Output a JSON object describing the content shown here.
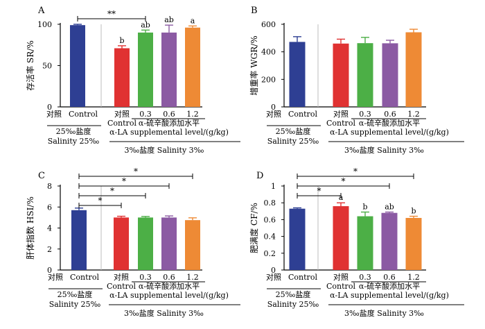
{
  "chart_data": [
    {
      "panel": "A",
      "type": "bar",
      "ylabel": "存活率 SR/%",
      "ylim": [
        0,
        100
      ],
      "yticks": [
        0,
        50,
        100
      ],
      "bars": [
        {
          "label": "Control",
          "value": 99,
          "err": 1,
          "color": "#2e3f93",
          "letter": ""
        },
        {
          "label": "对照",
          "value": 71,
          "err": 3,
          "color": "#e03232",
          "letter": "b"
        },
        {
          "label": "0.3",
          "value": 90,
          "err": 3,
          "color": "#4caf46",
          "letter": "ab"
        },
        {
          "label": "0.6",
          "value": 90,
          "err": 9,
          "color": "#8b5aa3",
          "letter": "ab"
        },
        {
          "label": "1.2",
          "value": 96,
          "err": 2,
          "color": "#ee8a35",
          "letter": "a"
        }
      ],
      "significance": [
        {
          "from": 0,
          "to": 2,
          "mark": "**"
        }
      ],
      "xlabels": {
        "control_cn": "对照",
        "control_en": "Control",
        "treat_control_cn": "对照",
        "treat_control_en": "Control",
        "doses": [
          "0.3",
          "0.6",
          "1.2"
        ],
        "la_cn": "α-硫辛酸添加水平",
        "la_en": "α-LA supplemental level/(g/kg)",
        "sal25_cn": "25‰盐度",
        "sal25_en": "Salinity 25‰",
        "sal3": "3‰盐度  Salinity 3‰"
      }
    },
    {
      "panel": "B",
      "type": "bar",
      "ylabel": "增重率  WGR/%",
      "ylim": [
        0,
        600
      ],
      "yticks": [
        0,
        200,
        400,
        600
      ],
      "bars": [
        {
          "label": "Control",
          "value": 472,
          "err": 38,
          "color": "#2e3f93",
          "letter": ""
        },
        {
          "label": "对照",
          "value": 460,
          "err": 32,
          "color": "#e03232",
          "letter": ""
        },
        {
          "label": "0.3",
          "value": 463,
          "err": 42,
          "color": "#4caf46",
          "letter": ""
        },
        {
          "label": "0.6",
          "value": 462,
          "err": 22,
          "color": "#8b5aa3",
          "letter": ""
        },
        {
          "label": "1.2",
          "value": 542,
          "err": 22,
          "color": "#ee8a35",
          "letter": ""
        }
      ],
      "significance": [],
      "xlabels": {
        "control_cn": "对照",
        "control_en": "Control",
        "treat_control_cn": "对照",
        "treat_control_en": "Control",
        "doses": [
          "0.3",
          "0.6",
          "1.2"
        ],
        "la_cn": "α-硫辛酸添加水平",
        "la_en": "α-LA supplemental level/(g/kg)",
        "sal25_cn": "25‰盐度",
        "sal25_en": "Salinity 25‰",
        "sal3": "3‰盐度  Salinity 3‰"
      }
    },
    {
      "panel": "C",
      "type": "bar",
      "ylabel": "肝体指数  HSI/%",
      "ylim": [
        0,
        8
      ],
      "yticks": [
        0,
        2,
        4,
        6,
        8
      ],
      "bars": [
        {
          "label": "Control",
          "value": 5.7,
          "err": 0.2,
          "color": "#2e3f93",
          "letter": ""
        },
        {
          "label": "对照",
          "value": 5.0,
          "err": 0.12,
          "color": "#e03232",
          "letter": ""
        },
        {
          "label": "0.3",
          "value": 5.0,
          "err": 0.1,
          "color": "#4caf46",
          "letter": ""
        },
        {
          "label": "0.6",
          "value": 5.0,
          "err": 0.15,
          "color": "#8b5aa3",
          "letter": ""
        },
        {
          "label": "1.2",
          "value": 4.75,
          "err": 0.22,
          "color": "#ee8a35",
          "letter": ""
        }
      ],
      "significance": [
        {
          "from": 0,
          "to": 4,
          "mark": "*"
        },
        {
          "from": 0,
          "to": 3,
          "mark": "*"
        },
        {
          "from": 0,
          "to": 2,
          "mark": "*"
        },
        {
          "from": 0,
          "to": 1,
          "mark": "*"
        }
      ],
      "xlabels": {
        "control_cn": "对照",
        "control_en": "Control",
        "treat_control_cn": "对照",
        "treat_control_en": "Control",
        "doses": [
          "0.3",
          "0.6",
          "1.2"
        ],
        "la_cn": "α-硫辛酸添加水平",
        "la_en": "α-LA supplemental level/(g/kg)",
        "sal25_cn": "25‰盐度",
        "sal25_en": "Salinity 25‰",
        "sal3": "3‰盐度  Salinity 3‰"
      }
    },
    {
      "panel": "D",
      "type": "bar",
      "ylabel": "肥满度  CF/%",
      "ylim": [
        0,
        1.0
      ],
      "yticks": [
        0,
        0.2,
        0.4,
        0.6,
        0.8,
        1.0
      ],
      "bars": [
        {
          "label": "Control",
          "value": 0.73,
          "err": 0.01,
          "color": "#2e3f93",
          "letter": ""
        },
        {
          "label": "对照",
          "value": 0.76,
          "err": 0.04,
          "color": "#e03232",
          "letter": "a"
        },
        {
          "label": "0.3",
          "value": 0.64,
          "err": 0.05,
          "color": "#4caf46",
          "letter": "b"
        },
        {
          "label": "0.6",
          "value": 0.68,
          "err": 0.01,
          "color": "#8b5aa3",
          "letter": "ab"
        },
        {
          "label": "1.2",
          "value": 0.62,
          "err": 0.02,
          "color": "#ee8a35",
          "letter": "b"
        }
      ],
      "significance": [
        {
          "from": 0,
          "to": 4,
          "mark": "*"
        },
        {
          "from": 0,
          "to": 3,
          "mark": "*"
        },
        {
          "from": 0,
          "to": 1,
          "mark": "*"
        }
      ],
      "xlabels": {
        "control_cn": "对照",
        "control_en": "Control",
        "treat_control_cn": "对照",
        "treat_control_en": "Control",
        "doses": [
          "0.3",
          "0.6",
          "1.2"
        ],
        "la_cn": "α-硫辛酸添加水平",
        "la_en": "α-LA supplemental level/(g/kg)",
        "sal25_cn": "25‰盐度",
        "sal25_en": "Salinity 25‰",
        "sal3": "3‰盐度  Salinity 3‰"
      }
    }
  ]
}
